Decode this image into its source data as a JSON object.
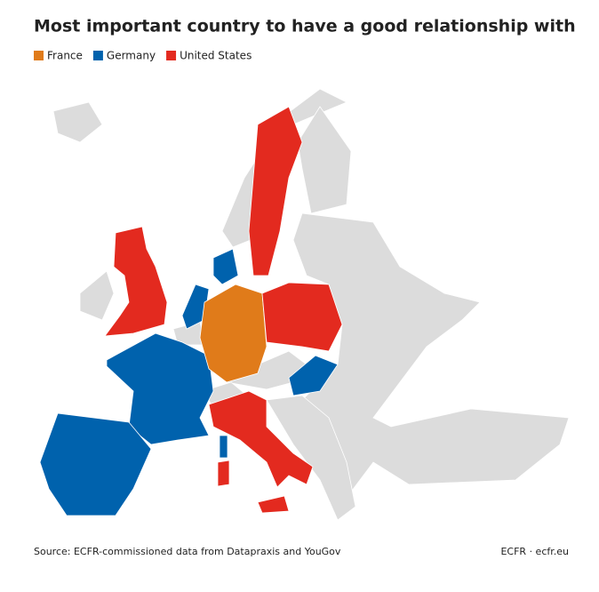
{
  "title": "Most important country to have a good relationship with",
  "legend": [
    {
      "name": "France",
      "color": "#e07b1a"
    },
    {
      "name": "Germany",
      "color": "#0062ad"
    },
    {
      "name": "United States",
      "color": "#e32a1f"
    }
  ],
  "source": "Source: ECFR-commissioned data from Datapraxis and YouGov",
  "credit": "ECFR · ecfr.eu"
}
